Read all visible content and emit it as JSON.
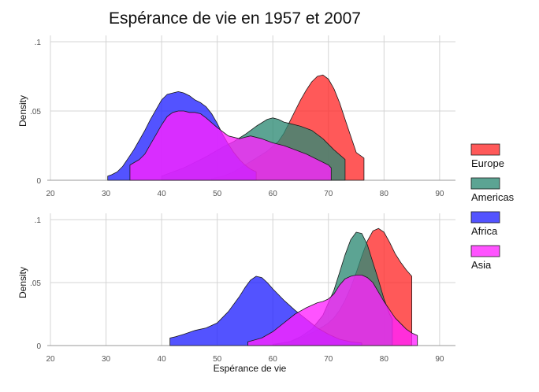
{
  "chart_data": {
    "type": "area",
    "title": "Espérance de vie en 1957 et 2007",
    "xlabel": "Espérance de vie",
    "ylabel": "Density",
    "x_ticks": [
      "20",
      "30",
      "40",
      "50",
      "60",
      "70",
      "80",
      "90"
    ],
    "y_ticks": [
      "0",
      ".05",
      ".1"
    ],
    "xlim": [
      20,
      92
    ],
    "ylim": [
      0,
      0.1
    ],
    "grid": true,
    "legend_position": "right",
    "legend": [
      {
        "name": "Europe",
        "color": "#ff2a2a"
      },
      {
        "name": "Americas",
        "color": "#2e8b74"
      },
      {
        "name": "Africa",
        "color": "#2222ff"
      },
      {
        "name": "Asia",
        "color": "#ff22ff"
      }
    ],
    "panels": [
      {
        "year": "1957",
        "series": [
          {
            "name": "Europe",
            "x": [
              49,
              51,
              53,
              55,
              57,
              59,
              61,
              62,
              63,
              64,
              65,
              66,
              67,
              68,
              69,
              70,
              71,
              72,
              73,
              74,
              75,
              76.4,
              76.4
            ],
            "y": [
              0.001,
              0.003,
              0.006,
              0.011,
              0.016,
              0.021,
              0.028,
              0.034,
              0.042,
              0.05,
              0.058,
              0.065,
              0.071,
              0.075,
              0.076,
              0.073,
              0.066,
              0.056,
              0.044,
              0.032,
              0.02,
              0.016,
              0
            ]
          },
          {
            "name": "Americas",
            "x": [
              40,
              44,
              48,
              51,
              53,
              55,
              57,
              59,
              60,
              61,
              62,
              63,
              65,
              67,
              69,
              71,
              73,
              73,
              73
            ],
            "y": [
              0.003,
              0.009,
              0.017,
              0.024,
              0.028,
              0.033,
              0.039,
              0.044,
              0.045,
              0.044,
              0.042,
              0.041,
              0.039,
              0.036,
              0.03,
              0.022,
              0.015,
              0.012,
              0
            ]
          },
          {
            "name": "Africa",
            "x": [
              30.3,
              31,
              32,
              33,
              34,
              35,
              36,
              37,
              38,
              39,
              40,
              41,
              42,
              43,
              44,
              45,
              46,
              47,
              48,
              49,
              50,
              51,
              52,
              53,
              54,
              55,
              56,
              57,
              57
            ],
            "y": [
              0.003,
              0.004,
              0.006,
              0.01,
              0.016,
              0.022,
              0.029,
              0.036,
              0.044,
              0.051,
              0.058,
              0.062,
              0.063,
              0.064,
              0.063,
              0.061,
              0.058,
              0.056,
              0.053,
              0.048,
              0.041,
              0.033,
              0.026,
              0.02,
              0.015,
              0.011,
              0.008,
              0.006,
              0
            ]
          },
          {
            "name": "Asia",
            "x": [
              34.3,
              36,
              37,
              38,
              39,
              40,
              41,
              42,
              43,
              44,
              45,
              46,
              47,
              48,
              50,
              52,
              54,
              55,
              56,
              58,
              60,
              62,
              64,
              66,
              68,
              70,
              70.5,
              70.5
            ],
            "y": [
              0.011,
              0.015,
              0.019,
              0.026,
              0.033,
              0.04,
              0.046,
              0.049,
              0.05,
              0.05,
              0.049,
              0.049,
              0.048,
              0.045,
              0.038,
              0.032,
              0.03,
              0.031,
              0.032,
              0.03,
              0.027,
              0.025,
              0.022,
              0.019,
              0.015,
              0.011,
              0.009,
              0
            ]
          }
        ]
      },
      {
        "year": "2007",
        "series": [
          {
            "name": "Europe",
            "x": [
              60,
              63,
              65,
              67,
              69,
              70,
              71,
              72,
              73,
              74,
              75,
              76,
              77,
              78,
              79,
              80,
              81,
              82,
              83,
              84,
              85,
              85,
              85
            ],
            "y": [
              0.001,
              0.003,
              0.006,
              0.01,
              0.015,
              0.018,
              0.022,
              0.028,
              0.036,
              0.046,
              0.058,
              0.071,
              0.083,
              0.091,
              0.093,
              0.09,
              0.082,
              0.073,
              0.066,
              0.06,
              0.055,
              0.053,
              0
            ]
          },
          {
            "name": "Americas",
            "x": [
              60.5,
              63,
              65,
              67,
              69,
              71,
              72,
              73,
              74,
              75,
              76,
              77,
              78,
              79,
              80,
              81,
              81.5,
              81.5
            ],
            "y": [
              0.001,
              0.003,
              0.007,
              0.013,
              0.024,
              0.044,
              0.058,
              0.072,
              0.084,
              0.09,
              0.089,
              0.08,
              0.066,
              0.052,
              0.037,
              0.025,
              0.021,
              0
            ]
          },
          {
            "name": "Africa",
            "x": [
              41.5,
              42.5,
              44,
              46,
              48,
              50,
              52,
              54,
              55,
              56,
              57,
              58,
              59,
              60,
              62,
              64,
              66,
              68,
              70,
              72,
              74,
              76,
              76
            ],
            "y": [
              0.006,
              0.007,
              0.009,
              0.012,
              0.014,
              0.018,
              0.027,
              0.039,
              0.046,
              0.052,
              0.055,
              0.054,
              0.05,
              0.045,
              0.036,
              0.028,
              0.021,
              0.014,
              0.009,
              0.005,
              0.003,
              0.002,
              0
            ]
          },
          {
            "name": "Asia",
            "x": [
              55.5,
              58,
              60,
              62,
              64,
              66,
              68,
              69,
              70,
              71,
              72,
              73,
              74,
              75,
              76,
              77,
              78,
              80,
              82,
              84,
              85,
              86,
              86
            ],
            "y": [
              0.003,
              0.006,
              0.011,
              0.018,
              0.025,
              0.03,
              0.034,
              0.035,
              0.037,
              0.041,
              0.048,
              0.053,
              0.055,
              0.056,
              0.056,
              0.054,
              0.05,
              0.035,
              0.022,
              0.013,
              0.01,
              0.008,
              0
            ]
          }
        ]
      }
    ]
  }
}
